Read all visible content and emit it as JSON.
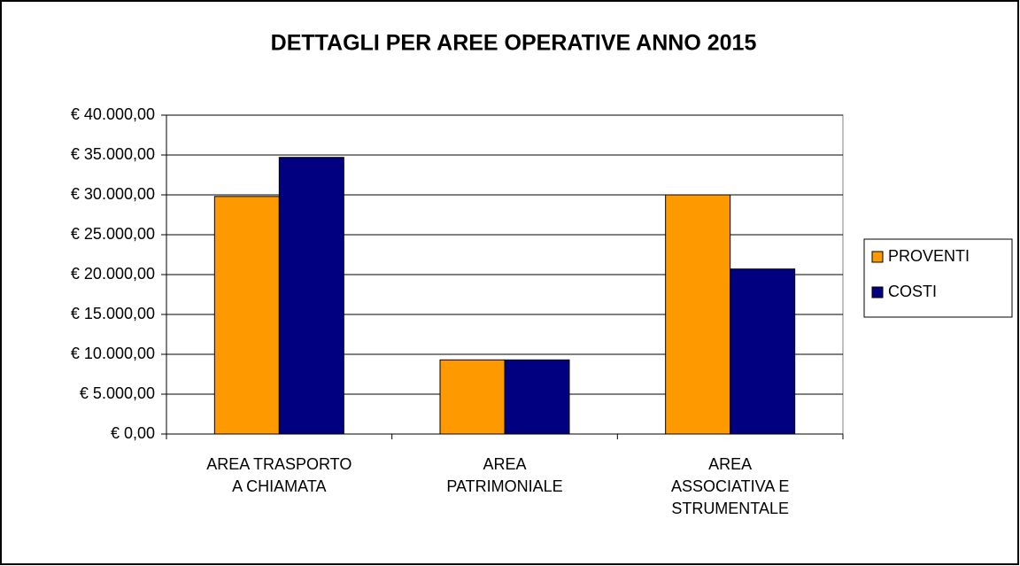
{
  "chart_data": {
    "type": "bar",
    "title": "DETTAGLI PER AREE OPERATIVE ANNO 2015",
    "categories": [
      "AREA TRASPORTO\nA CHIAMATA",
      "AREA\nPATRIMONIALE",
      "AREA\nASSOCIATIVA E\nSTRUMENTALE"
    ],
    "series": [
      {
        "name": "PROVENTI",
        "color": "#ff9900",
        "values": [
          29800,
          9300,
          30000
        ]
      },
      {
        "name": "COSTI",
        "color": "#000080",
        "values": [
          34700,
          9300,
          20700
        ]
      }
    ],
    "ylim": [
      0,
      40000
    ],
    "yticks": [
      {
        "value": 0,
        "label": "€ 0,00"
      },
      {
        "value": 5000,
        "label": "€ 5.000,00"
      },
      {
        "value": 10000,
        "label": "€ 10.000,00"
      },
      {
        "value": 15000,
        "label": "€ 15.000,00"
      },
      {
        "value": 20000,
        "label": "€ 20.000,00"
      },
      {
        "value": 25000,
        "label": "€ 25.000,00"
      },
      {
        "value": 30000,
        "label": "€ 30.000,00"
      },
      {
        "value": 35000,
        "label": "€ 35.000,00"
      },
      {
        "value": 40000,
        "label": "€ 40.000,00"
      }
    ],
    "grid": true,
    "legend": "right"
  }
}
